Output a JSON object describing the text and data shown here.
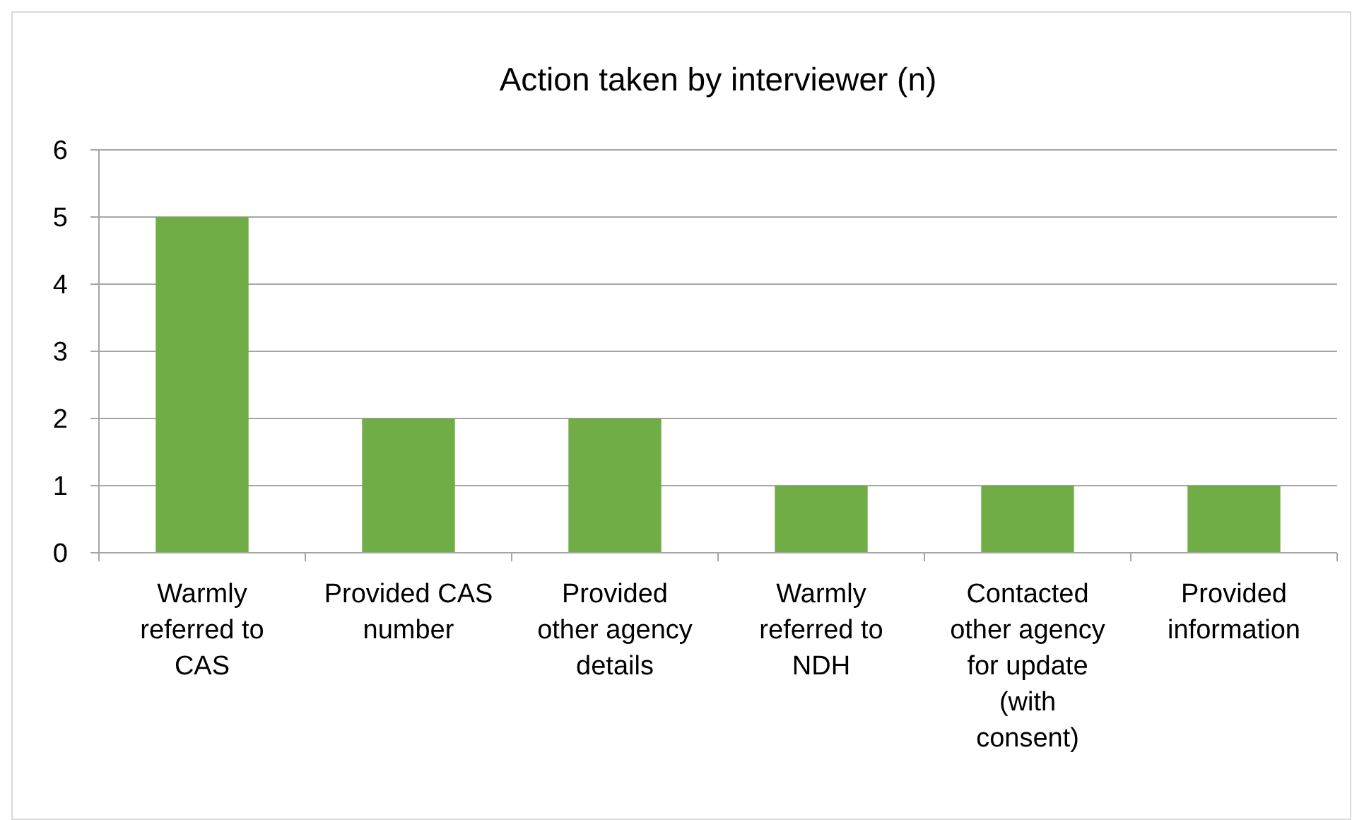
{
  "chart_data": {
    "type": "bar",
    "title": "Action taken by interviewer (n)",
    "categories": [
      "Warmly referred to CAS",
      "Provided CAS number",
      "Provided other agency details",
      "Warmly referred to NDH",
      "Contacted other agency for update (with consent)",
      "Provided information"
    ],
    "values": [
      5,
      2,
      2,
      1,
      1,
      1
    ],
    "color": "#70ad47",
    "ylim": [
      0,
      6
    ],
    "yticks": [
      0,
      1,
      2,
      3,
      4,
      5,
      6
    ],
    "grid": "y"
  }
}
